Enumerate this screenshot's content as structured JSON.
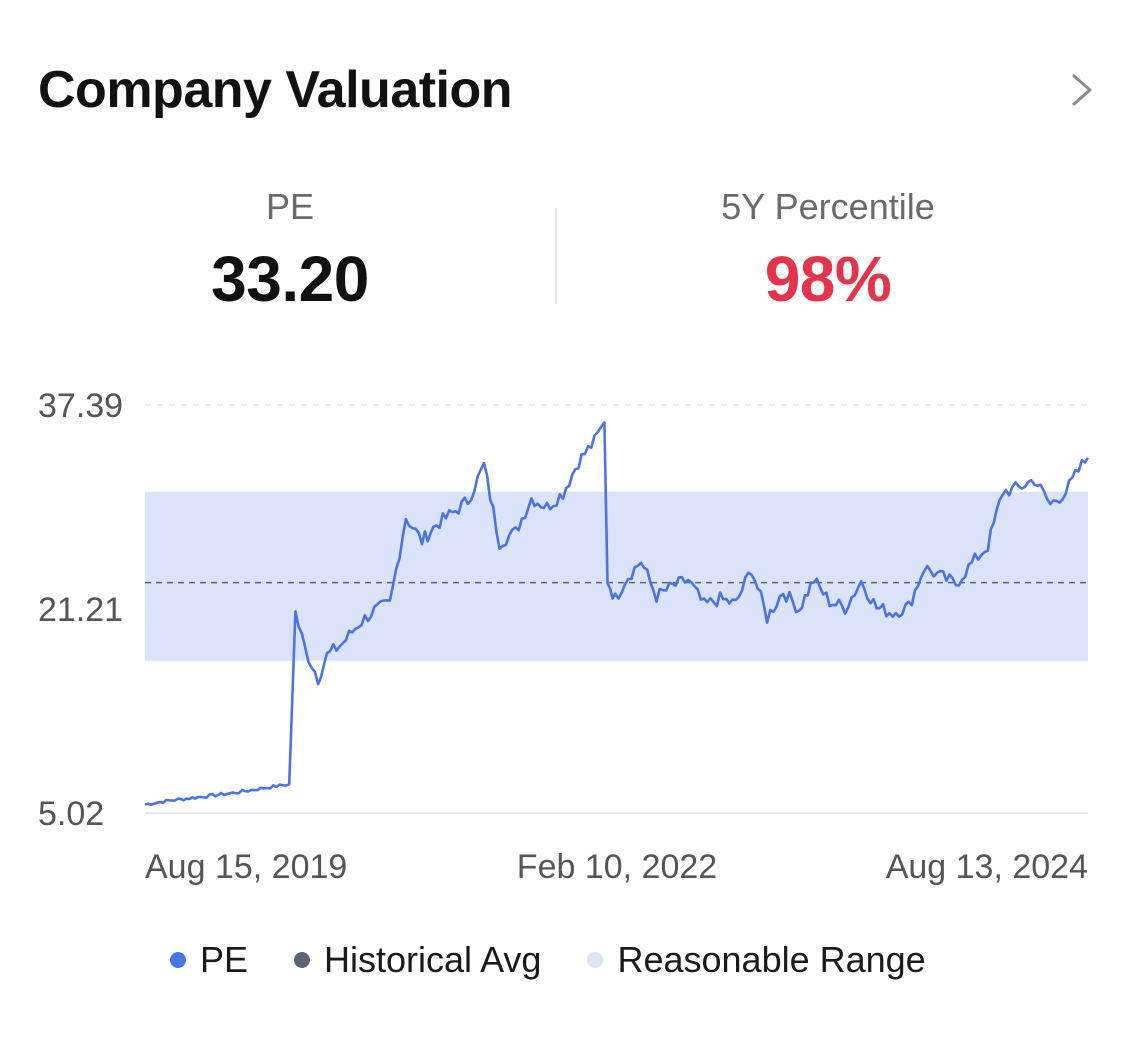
{
  "header": {
    "title": "Company Valuation",
    "chevron_icon": "chevron-right-icon"
  },
  "metrics": {
    "pe": {
      "label": "PE",
      "value": "33.20",
      "color": "#111111"
    },
    "percentile": {
      "label": "5Y Percentile",
      "value": "98%",
      "color": "#e5334b"
    }
  },
  "colors": {
    "pe_line": "#4a74e6",
    "avg_line": "#5b6675",
    "range_fill": "#dbe3fb"
  },
  "legend": [
    {
      "label": "PE",
      "color": "#4a74e6"
    },
    {
      "label": "Historical Avg",
      "color": "#5b6675"
    },
    {
      "label": "Reasonable Range",
      "color": "#dbe3fb"
    }
  ],
  "chart_data": {
    "type": "line",
    "ylim": [
      5.02,
      37.39
    ],
    "yticks": [
      "37.39",
      "21.21",
      "5.02"
    ],
    "xticks": [
      "Aug 15, 2019",
      "Feb 10, 2022",
      "Aug 13, 2024"
    ],
    "historical_avg": 23.3,
    "reasonable_range": [
      17.1,
      30.5
    ],
    "grid": "dashed horizontal",
    "legend_position": "bottom",
    "series": [
      {
        "name": "PE",
        "x": [
          "2019-08-15",
          "2019-10-01",
          "2019-12-01",
          "2020-02-01",
          "2020-04-01",
          "2020-05-20",
          "2020-06-01",
          "2020-06-20",
          "2020-07-15",
          "2020-08-01",
          "2020-09-01",
          "2020-10-01",
          "2020-11-01",
          "2020-12-01",
          "2021-01-01",
          "2021-02-01",
          "2021-03-01",
          "2021-04-01",
          "2021-05-01",
          "2021-06-01",
          "2021-07-01",
          "2021-08-01",
          "2021-09-01",
          "2021-10-01",
          "2021-11-01",
          "2021-12-01",
          "2022-01-01",
          "2022-01-20",
          "2022-01-26",
          "2022-02-10",
          "2022-03-01",
          "2022-04-01",
          "2022-05-01",
          "2022-06-01",
          "2022-07-01",
          "2022-08-01",
          "2022-09-01",
          "2022-10-01",
          "2022-11-01",
          "2022-12-01",
          "2023-01-01",
          "2023-02-01",
          "2023-03-01",
          "2023-04-01",
          "2023-05-01",
          "2023-06-01",
          "2023-07-01",
          "2023-08-01",
          "2023-09-01",
          "2023-10-01",
          "2023-11-01",
          "2023-12-01",
          "2024-01-01",
          "2024-02-01",
          "2024-03-01",
          "2024-04-01",
          "2024-05-01",
          "2024-06-01",
          "2024-07-01",
          "2024-08-01",
          "2024-08-13"
        ],
        "values": [
          5.7,
          6.0,
          6.3,
          6.6,
          7.0,
          7.3,
          20.9,
          18.0,
          15.7,
          17.5,
          18.5,
          20.0,
          21.1,
          21.6,
          28.5,
          26.6,
          27.9,
          28.8,
          29.8,
          32.6,
          26.5,
          27.3,
          30.0,
          29.3,
          30.4,
          32.9,
          34.5,
          36.0,
          23.5,
          22.0,
          23.5,
          25.0,
          22.2,
          23.0,
          23.5,
          21.5,
          22.0,
          21.6,
          24.4,
          20.5,
          22.6,
          21.2,
          23.5,
          21.8,
          21.3,
          23.4,
          21.3,
          20.9,
          21.4,
          24.5,
          23.8,
          23.2,
          24.8,
          26.2,
          30.5,
          30.8,
          31.5,
          29.5,
          30.5,
          32.6,
          33.2
        ]
      }
    ]
  }
}
